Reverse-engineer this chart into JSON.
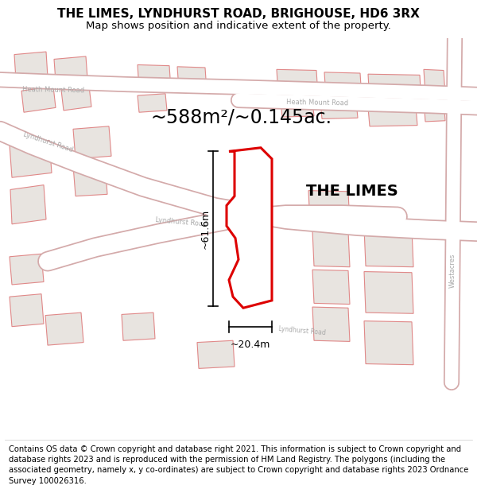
{
  "title": "THE LIMES, LYNDHURST ROAD, BRIGHOUSE, HD6 3RX",
  "subtitle": "Map shows position and indicative extent of the property.",
  "area_label": "~588m²/~0.145ac.",
  "property_label": "THE LIMES",
  "dim_width": "~20.4m",
  "dim_height": "~61.6m",
  "footer": "Contains OS data © Crown copyright and database right 2021. This information is subject to Crown copyright and database rights 2023 and is reproduced with the permission of HM Land Registry. The polygons (including the associated geometry, namely x, y co-ordinates) are subject to Crown copyright and database rights 2023 Ordnance Survey 100026316.",
  "bg_color": "#f7f4f0",
  "road_color": "#ffffff",
  "road_outline": "#d4aaaa",
  "building_fill": "#e8e4e0",
  "building_outline": "#e08888",
  "highlight_fill": "#ffffff",
  "highlight_outline": "#dd0000",
  "text_color": "#000000",
  "gray_text": "#aaaaaa",
  "footer_color": "#000000",
  "title_fontsize": 11,
  "subtitle_fontsize": 9.5,
  "area_fontsize": 17,
  "property_fontsize": 14,
  "dim_fontsize": 9,
  "road_label_fontsize": 6.5,
  "footer_fontsize": 7.2
}
